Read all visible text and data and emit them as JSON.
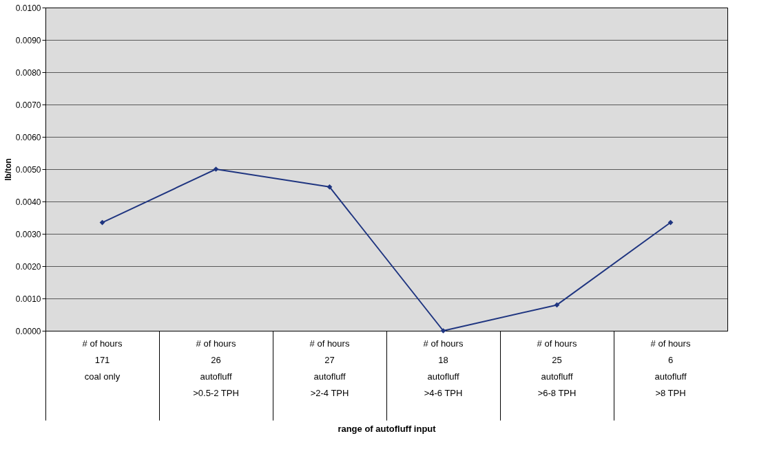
{
  "chart_data": {
    "type": "line",
    "ylabel": "lb/ton",
    "xlabel": "range of autofluff input",
    "categories": [
      "# of hours\n171\n\ncoal only",
      "# of hours\n26\nautofluff\n>0.5-2 TPH",
      "# of hours\n27\nautofluff\n>2-4 TPH",
      "# of hours\n18\nautofluff\n>4-6 TPH",
      "# of hours\n25\nautofluff\n>6-8 TPH",
      "# of hours\n6\nautofluff\n>8 TPH"
    ],
    "series": [
      {
        "color": "#1f3580",
        "values": [
          0.00335,
          0.005,
          0.00445,
          0.0,
          0.0008,
          0.00335
        ]
      }
    ],
    "ylim": [
      0,
      0.01
    ],
    "yticks": [
      {
        "value": 0,
        "label": "0.0000"
      },
      {
        "value": 0.001,
        "label": "0.0010"
      },
      {
        "value": 0.002,
        "label": "0.0020"
      },
      {
        "value": 0.003,
        "label": "0.0030"
      },
      {
        "value": 0.004,
        "label": "0.0040"
      },
      {
        "value": 0.005,
        "label": "0.0050"
      },
      {
        "value": 0.006,
        "label": "0.0060"
      },
      {
        "value": 0.007,
        "label": "0.0070"
      },
      {
        "value": 0.008,
        "label": "0.0080"
      },
      {
        "value": 0.009,
        "label": "0.0090"
      },
      {
        "value": 0.01,
        "label": "0.0100"
      }
    ],
    "grid": "y",
    "marker": "diamond",
    "line_style": "solid"
  }
}
